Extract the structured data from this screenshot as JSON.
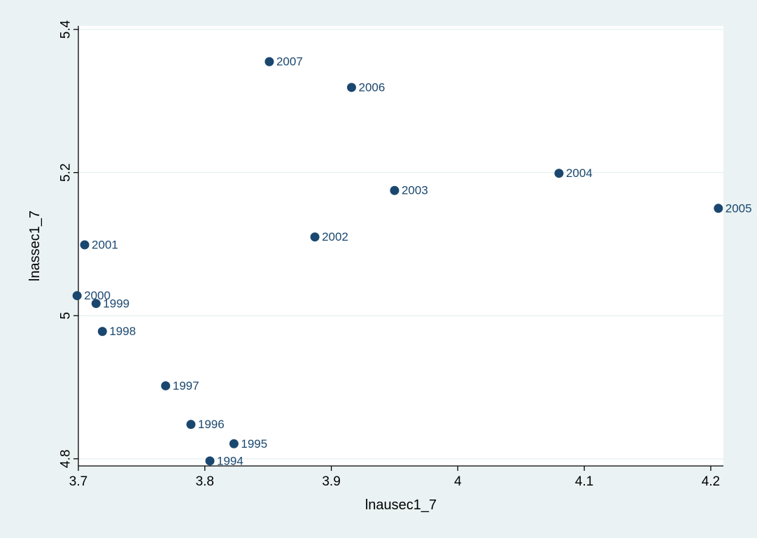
{
  "chart_data": {
    "type": "scatter",
    "title": "",
    "xlabel": "lnausec1_7",
    "ylabel": "lnassec1_7",
    "xlim": [
      3.7,
      4.21
    ],
    "ylim": [
      4.79,
      5.405
    ],
    "xticks": [
      "3.7",
      "3.8",
      "3.9",
      "4",
      "4.1",
      "4.2"
    ],
    "yticks": [
      "4.8",
      "5",
      "5.2",
      "5.4"
    ],
    "grid": true,
    "marker_color": "#1a476f",
    "label_color": "#1a476f",
    "plot_background": "#ffffff",
    "background": "#eaf2f3",
    "points": [
      {
        "x": 3.804,
        "y": 4.797,
        "label": "1994"
      },
      {
        "x": 3.823,
        "y": 4.821,
        "label": "1995"
      },
      {
        "x": 3.789,
        "y": 4.848,
        "label": "1996"
      },
      {
        "x": 3.769,
        "y": 4.902,
        "label": "1997"
      },
      {
        "x": 3.719,
        "y": 4.978,
        "label": "1998"
      },
      {
        "x": 3.714,
        "y": 5.017,
        "label": "1999"
      },
      {
        "x": 3.699,
        "y": 5.028,
        "label": "2000"
      },
      {
        "x": 3.705,
        "y": 5.099,
        "label": "2001"
      },
      {
        "x": 3.887,
        "y": 5.11,
        "label": "2002"
      },
      {
        "x": 3.95,
        "y": 5.175,
        "label": "2003"
      },
      {
        "x": 4.08,
        "y": 5.199,
        "label": "2004"
      },
      {
        "x": 4.206,
        "y": 5.15,
        "label": "2005"
      },
      {
        "x": 3.916,
        "y": 5.319,
        "label": "2006"
      },
      {
        "x": 3.851,
        "y": 5.355,
        "label": "2007"
      }
    ]
  }
}
